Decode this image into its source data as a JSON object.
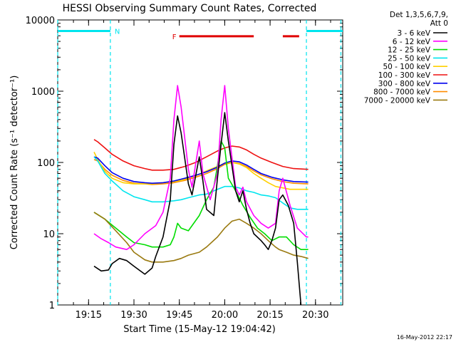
{
  "chart_data": {
    "type": "line",
    "title": "HESSI Observing Summary Count Rates, Corrected",
    "xlabel": "Start Time (15-May-12 19:04:42)",
    "ylabel": "Corrected Count Rate (s⁻¹ detector⁻¹)",
    "xlim": [
      19.08,
      20.65
    ],
    "ylim": [
      1,
      10000
    ],
    "yscale": "log",
    "x_ticks": [
      {
        "value": 19.25,
        "label": "19:15"
      },
      {
        "value": 19.5,
        "label": "19:30"
      },
      {
        "value": 19.75,
        "label": "19:45"
      },
      {
        "value": 20.0,
        "label": "20:00"
      },
      {
        "value": 20.25,
        "label": "20:15"
      },
      {
        "value": 20.5,
        "label": "20:30"
      }
    ],
    "y_ticks": [
      {
        "value": 1,
        "label": "1"
      },
      {
        "value": 10,
        "label": "10"
      },
      {
        "value": 100,
        "label": "100"
      },
      {
        "value": 1000,
        "label": "1000"
      },
      {
        "value": 10000,
        "label": "10000"
      }
    ],
    "legend_header": [
      "Det 1,3,5,6,7,9,",
      "Att 0"
    ],
    "legend_placement": "right",
    "footer_date": "16-May-2012 22:17",
    "flags": [
      {
        "label": "N",
        "color": "#00e5ee",
        "segments": [
          [
            19.08,
            19.37
          ],
          [
            20.45,
            20.65
          ]
        ],
        "level": 7000
      },
      {
        "label": "F",
        "color": "#e00000",
        "segments": [
          [
            19.75,
            20.16
          ],
          [
            20.32,
            20.41
          ]
        ],
        "level": 5900
      }
    ],
    "night_boundaries": [
      19.08,
      19.37,
      20.45,
      20.64
    ],
    "series": [
      {
        "name": "3 - 6 keV",
        "color": "#000000",
        "x": [
          19.28,
          19.32,
          19.36,
          19.38,
          19.42,
          19.46,
          19.5,
          19.56,
          19.6,
          19.62,
          19.66,
          19.7,
          19.72,
          19.74,
          19.76,
          19.8,
          19.82,
          19.86,
          19.88,
          19.9,
          19.94,
          19.96,
          19.98,
          20.0,
          20.02,
          20.06,
          20.08,
          20.1,
          20.12,
          20.14,
          20.16,
          20.2,
          20.22,
          20.24,
          20.26,
          20.28,
          20.3,
          20.32,
          20.35,
          20.38,
          20.4,
          20.42
        ],
        "y": [
          3.5,
          3.0,
          3.1,
          3.8,
          4.5,
          4.2,
          3.5,
          2.7,
          3.3,
          4.8,
          9,
          30,
          180,
          450,
          260,
          50,
          35,
          120,
          55,
          22,
          18,
          60,
          180,
          500,
          200,
          40,
          28,
          40,
          22,
          14,
          10,
          8,
          7,
          6,
          8,
          12,
          30,
          35,
          25,
          14,
          4,
          1
        ]
      },
      {
        "name": "6 - 12 keV",
        "color": "#ff00ff",
        "x": [
          19.28,
          19.32,
          19.36,
          19.4,
          19.46,
          19.5,
          19.56,
          19.62,
          19.66,
          19.7,
          19.72,
          19.74,
          19.76,
          19.8,
          19.82,
          19.86,
          19.88,
          19.92,
          19.96,
          19.98,
          20.0,
          20.02,
          20.06,
          20.08,
          20.1,
          20.12,
          20.16,
          20.2,
          20.24,
          20.28,
          20.3,
          20.32,
          20.36,
          20.4,
          20.45,
          20.46
        ],
        "y": [
          10,
          8.5,
          7.5,
          6.5,
          6.0,
          7.0,
          10,
          13,
          20,
          60,
          400,
          1200,
          600,
          80,
          45,
          200,
          70,
          30,
          70,
          400,
          1200,
          300,
          45,
          35,
          45,
          28,
          18,
          14,
          12,
          14,
          40,
          60,
          25,
          12,
          9,
          9
        ]
      },
      {
        "name": "12 - 25 keV",
        "color": "#00dd00",
        "x": [
          19.28,
          19.34,
          19.4,
          19.46,
          19.5,
          19.56,
          19.6,
          19.66,
          19.7,
          19.72,
          19.74,
          19.76,
          19.8,
          19.86,
          19.9,
          19.94,
          19.96,
          19.98,
          20.0,
          20.02,
          20.06,
          20.1,
          20.14,
          20.18,
          20.22,
          20.26,
          20.3,
          20.34,
          20.38,
          20.42,
          20.46
        ],
        "y": [
          20,
          16,
          12,
          9,
          7.5,
          7,
          6.5,
          6.5,
          7,
          9,
          14,
          12,
          11,
          18,
          30,
          45,
          90,
          200,
          160,
          60,
          40,
          25,
          17,
          12,
          10,
          8,
          9,
          9,
          7,
          6,
          6
        ]
      },
      {
        "name": "25 - 50 keV",
        "color": "#00e5ee",
        "x": [
          19.28,
          19.3,
          19.34,
          19.38,
          19.44,
          19.5,
          19.56,
          19.6,
          19.66,
          19.72,
          19.76,
          19.8,
          19.86,
          19.9,
          19.96,
          20.0,
          20.04,
          20.08,
          20.12,
          20.16,
          20.2,
          20.24,
          20.28,
          20.32,
          20.36,
          20.4,
          20.46
        ],
        "y": [
          120,
          105,
          70,
          55,
          40,
          33,
          30,
          28,
          28,
          29,
          30,
          32,
          35,
          36,
          42,
          46,
          46,
          44,
          40,
          38,
          35,
          34,
          32,
          27,
          23,
          22,
          22
        ]
      },
      {
        "name": "50 - 100 keV",
        "color": "#ffd000",
        "x": [
          19.28,
          19.3,
          19.34,
          19.38,
          19.44,
          19.5,
          19.56,
          19.6,
          19.66,
          19.72,
          19.76,
          19.8,
          19.86,
          19.9,
          19.96,
          20.0,
          20.04,
          20.08,
          20.12,
          20.16,
          20.2,
          20.24,
          20.28,
          20.32,
          20.36,
          20.4,
          20.46
        ],
        "y": [
          140,
          110,
          75,
          60,
          52,
          50,
          50,
          50,
          52,
          54,
          56,
          60,
          68,
          76,
          88,
          98,
          100,
          95,
          85,
          70,
          60,
          52,
          46,
          44,
          42,
          42,
          42
        ]
      },
      {
        "name": "100 - 300 keV",
        "color": "#ee1111",
        "x": [
          19.28,
          19.3,
          19.34,
          19.38,
          19.44,
          19.5,
          19.56,
          19.6,
          19.66,
          19.72,
          19.78,
          19.84,
          19.9,
          19.96,
          20.0,
          20.04,
          20.08,
          20.12,
          20.16,
          20.2,
          20.26,
          20.32,
          20.38,
          20.46
        ],
        "y": [
          210,
          195,
          160,
          130,
          105,
          90,
          82,
          78,
          78,
          80,
          88,
          100,
          120,
          145,
          160,
          170,
          165,
          150,
          130,
          115,
          100,
          88,
          82,
          80
        ]
      },
      {
        "name": "300 - 800 keV",
        "color": "#0000ee",
        "x": [
          19.28,
          19.3,
          19.34,
          19.38,
          19.44,
          19.5,
          19.56,
          19.6,
          19.66,
          19.72,
          19.78,
          19.84,
          19.9,
          19.96,
          20.0,
          20.04,
          20.08,
          20.12,
          20.16,
          20.2,
          20.26,
          20.32,
          20.38,
          20.46
        ],
        "y": [
          120,
          115,
          90,
          72,
          60,
          54,
          52,
          51,
          52,
          55,
          60,
          66,
          74,
          86,
          98,
          105,
          102,
          92,
          80,
          70,
          62,
          57,
          54,
          53
        ]
      },
      {
        "name": "800 - 7000 keV",
        "color": "#ff8c00",
        "x": [
          19.28,
          19.3,
          19.34,
          19.38,
          19.44,
          19.5,
          19.56,
          19.6,
          19.66,
          19.72,
          19.78,
          19.84,
          19.9,
          19.96,
          20.0,
          20.04,
          20.08,
          20.12,
          20.16,
          20.2,
          20.26,
          20.32,
          20.38,
          20.46
        ],
        "y": [
          110,
          105,
          80,
          66,
          56,
          51,
          50,
          49,
          50,
          52,
          56,
          62,
          70,
          82,
          94,
          100,
          97,
          88,
          76,
          67,
          59,
          54,
          51,
          50
        ]
      },
      {
        "name": "7000 - 20000 keV",
        "color": "#9a7a10",
        "x": [
          19.28,
          19.34,
          19.4,
          19.46,
          19.5,
          19.56,
          19.6,
          19.66,
          19.72,
          19.76,
          19.8,
          19.86,
          19.9,
          19.96,
          20.0,
          20.04,
          20.08,
          20.12,
          20.16,
          20.2,
          20.24,
          20.28,
          20.3,
          20.34,
          20.38,
          20.42,
          20.46
        ],
        "y": [
          20,
          16,
          11,
          7.5,
          5.5,
          4.3,
          4.0,
          4.0,
          4.2,
          4.5,
          5.0,
          5.5,
          6.5,
          9,
          12,
          15,
          16,
          14,
          12,
          10,
          8,
          6.5,
          6,
          5.5,
          5,
          4.8,
          4.5
        ]
      }
    ]
  }
}
